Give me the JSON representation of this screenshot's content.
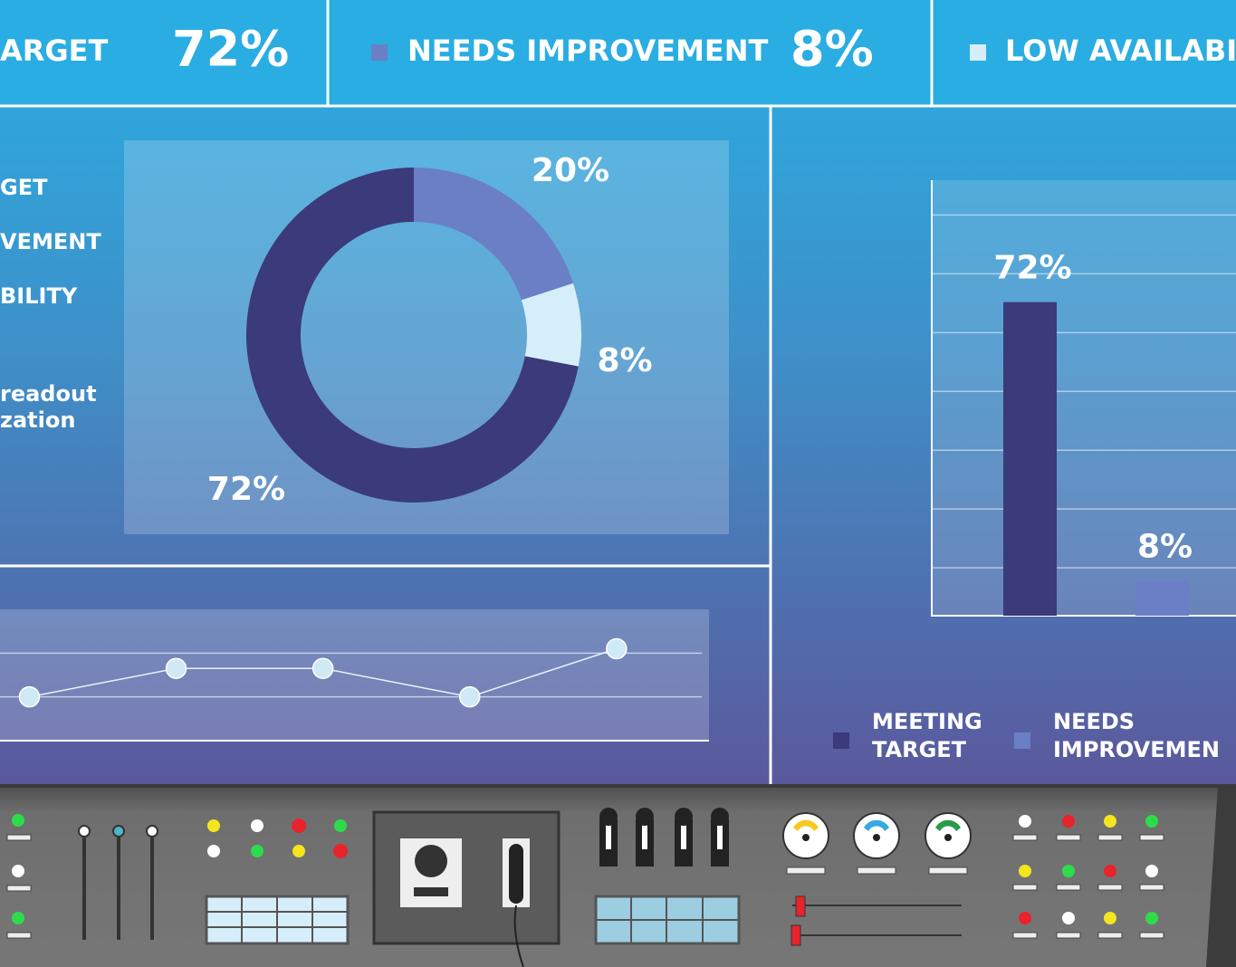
{
  "header": {
    "items": [
      {
        "label": "ARGET",
        "value": "72%"
      },
      {
        "label": "NEEDS IMPROVEMENT",
        "value": "8%"
      },
      {
        "label": "LOW AVAILABIL"
      }
    ]
  },
  "side_labels": [
    "GET",
    "VEMENT",
    "BILITY",
    "readout",
    "zation"
  ],
  "chart_data": [
    {
      "type": "pie",
      "donut": true,
      "values": [
        20,
        8,
        72
      ],
      "value_labels": [
        "20%",
        "8%",
        "72%"
      ],
      "colors": [
        "#6a7fc5",
        "#d6eef9",
        "#3b3a7a"
      ]
    },
    {
      "type": "bar",
      "categories": [
        "MEETING TARGET",
        "NEEDS IMPROVEMEN"
      ],
      "values": [
        72,
        8
      ],
      "value_labels": [
        "72%",
        "8%"
      ],
      "colors": [
        "#3b3a7a",
        "#6a7fc5"
      ],
      "ylim": [
        0,
        100
      ],
      "yticks": [
        11,
        24.5,
        38,
        51.5,
        65,
        78.5,
        92
      ],
      "grid": true
    },
    {
      "type": "line",
      "x": [
        0,
        1,
        2,
        3,
        4
      ],
      "values": [
        1,
        1.65,
        1.65,
        1,
        2.1
      ],
      "xlim": [
        -0.2,
        4.63
      ],
      "ylim": [
        0,
        3
      ],
      "yticks": [
        1,
        2
      ],
      "grid": true,
      "color": "#e6f4fb"
    }
  ]
}
